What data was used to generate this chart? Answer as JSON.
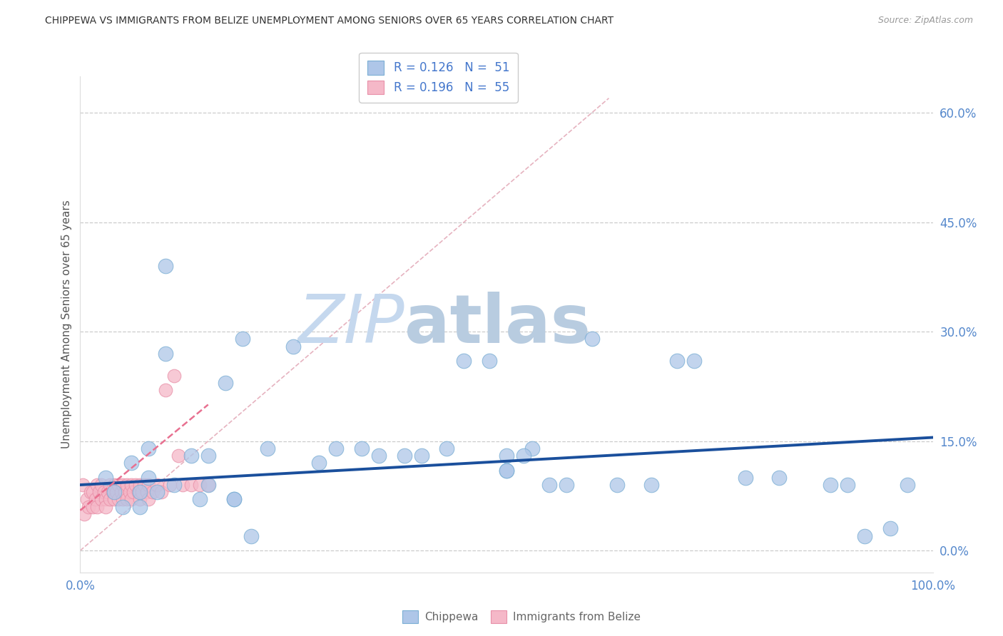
{
  "title": "CHIPPEWA VS IMMIGRANTS FROM BELIZE UNEMPLOYMENT AMONG SENIORS OVER 65 YEARS CORRELATION CHART",
  "source": "Source: ZipAtlas.com",
  "ylabel": "Unemployment Among Seniors over 65 years",
  "ytick_labels": [
    "0.0%",
    "15.0%",
    "30.0%",
    "45.0%",
    "60.0%"
  ],
  "ytick_values": [
    0,
    15,
    30,
    45,
    60
  ],
  "xlim": [
    0,
    100
  ],
  "ylim": [
    -3,
    65
  ],
  "legend1_label": "R = 0.126   N =  51",
  "legend2_label": "R = 0.196   N =  55",
  "chippewa_color": "#aec6e8",
  "chippewa_edge": "#7aaed4",
  "belize_color": "#f5b8c8",
  "belize_edge": "#e890a8",
  "trendline_chippewa_color": "#1a4f9c",
  "trendline_belize_color": "#e87090",
  "diagonal_color": "#cccccc",
  "watermark_zip": "ZIP",
  "watermark_atlas": "atlas",
  "watermark_color_zip": "#c5d8ee",
  "watermark_color_atlas": "#b8cce0",
  "chippewa_x": [
    3,
    4,
    5,
    6,
    7,
    7,
    8,
    8,
    9,
    10,
    10,
    11,
    13,
    14,
    15,
    15,
    17,
    18,
    18,
    19,
    20,
    22,
    25,
    28,
    30,
    33,
    35,
    38,
    40,
    43,
    45,
    48,
    50,
    50,
    53,
    55,
    57,
    60,
    63,
    67,
    70,
    72,
    78,
    82,
    88,
    90,
    92,
    95,
    97,
    50,
    52
  ],
  "chippewa_y": [
    10,
    8,
    6,
    12,
    8,
    6,
    10,
    14,
    8,
    39,
    27,
    9,
    13,
    7,
    13,
    9,
    23,
    7,
    7,
    29,
    2,
    14,
    28,
    12,
    14,
    14,
    13,
    13,
    13,
    14,
    26,
    26,
    11,
    11,
    14,
    9,
    9,
    29,
    9,
    9,
    26,
    26,
    10,
    10,
    9,
    9,
    2,
    3,
    9,
    13,
    13
  ],
  "belize_x": [
    0.3,
    0.5,
    0.8,
    1.0,
    1.2,
    1.5,
    1.5,
    1.8,
    2.0,
    2.0,
    2.2,
    2.5,
    2.5,
    2.8,
    3.0,
    3.0,
    3.2,
    3.5,
    3.5,
    3.8,
    4.0,
    4.0,
    4.2,
    4.5,
    4.5,
    4.8,
    5.0,
    5.0,
    5.2,
    5.5,
    5.5,
    5.8,
    6.0,
    6.0,
    6.2,
    6.5,
    6.8,
    7.0,
    7.0,
    7.2,
    7.5,
    7.8,
    8.0,
    8.0,
    8.5,
    9.0,
    9.5,
    10.0,
    10.5,
    11.0,
    11.5,
    12.0,
    13.0,
    14.0,
    15.0
  ],
  "belize_y": [
    9,
    5,
    7,
    6,
    8,
    6,
    8,
    7,
    6,
    9,
    8,
    7,
    9,
    8,
    7,
    6,
    8,
    7,
    9,
    8,
    7,
    9,
    8,
    7,
    9,
    8,
    7,
    9,
    8,
    7,
    9,
    8,
    7,
    9,
    8,
    9,
    8,
    7,
    9,
    8,
    9,
    8,
    7,
    9,
    8,
    9,
    8,
    22,
    9,
    24,
    13,
    9,
    9,
    9,
    9
  ],
  "chip_trend_x0": 0,
  "chip_trend_y0": 9.0,
  "chip_trend_x1": 100,
  "chip_trend_y1": 15.5,
  "belize_trend_x0": 0,
  "belize_trend_y0": 5.5,
  "belize_trend_x1": 15,
  "belize_trend_y1": 20.0
}
